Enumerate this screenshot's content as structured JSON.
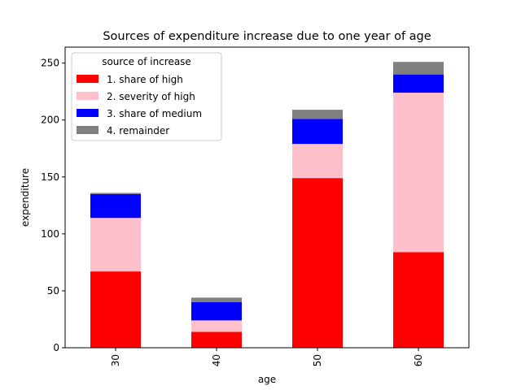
{
  "chart_data": {
    "type": "bar",
    "stacked": true,
    "title": "Sources of expenditure increase due to one year of age",
    "xlabel": "age",
    "ylabel": "expenditure",
    "categories": [
      "30",
      "40",
      "50",
      "60"
    ],
    "ylim": [
      0,
      264
    ],
    "yticks": [
      0,
      50,
      100,
      150,
      200,
      250
    ],
    "grid": false,
    "legend": {
      "title": "source of increase",
      "placement": "top-left"
    },
    "series": [
      {
        "name": "1. share of high",
        "color": "#ff0000",
        "values": [
          67,
          14,
          149,
          84
        ]
      },
      {
        "name": "2. severity of high",
        "color": "#ffc0cb",
        "values": [
          47,
          10,
          30,
          140
        ]
      },
      {
        "name": "3. share of medium",
        "color": "#0000ff",
        "values": [
          21,
          16,
          22,
          16
        ]
      },
      {
        "name": "4. remainder",
        "color": "#808080",
        "values": [
          1,
          4,
          8,
          11
        ]
      }
    ]
  }
}
